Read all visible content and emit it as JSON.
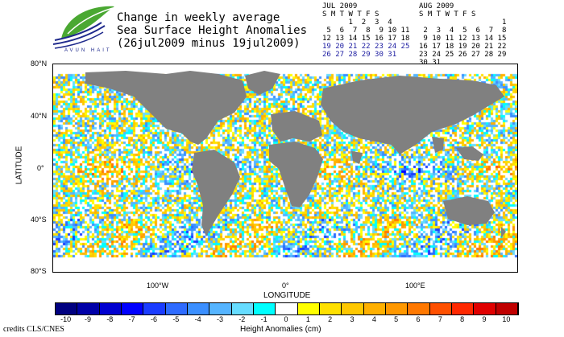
{
  "logo": {
    "text": "AVUN HAIT"
  },
  "title": {
    "line1": "Change in weekly average",
    "line2": "Sea Surface Height Anomalies",
    "line3": "(26jul2009 minus 19jul2009)"
  },
  "calendars": [
    {
      "month": "JUL 2009",
      "days_header": "S M T W T F S",
      "rows": [
        "      1  2  3  4",
        " 5  6  7  8  9 10 11",
        "12 13 14 15 16 17 18",
        "19 20 21 22 23 24 25",
        "26 27 28 29 30 31"
      ],
      "highlight_rows": [
        3,
        4
      ]
    },
    {
      "month": "AUG 2009",
      "days_header": "S M T W T F S",
      "rows": [
        "                   1",
        " 2  3  4  5  6  7  8",
        " 9 10 11 12 13 14 15",
        "16 17 18 19 20 21 22",
        "23 24 25 26 27 28 29",
        "30 31"
      ],
      "highlight_rows": []
    }
  ],
  "map": {
    "ylabel": "LATITUDE",
    "xlabel": "LONGITUDE",
    "lat_ticks": [
      "80°N",
      "40°N",
      "0°",
      "40°S",
      "80°S"
    ],
    "lon_ticks": [
      "100°W",
      "0°",
      "100°E"
    ],
    "land_color": "#808080",
    "ice_color": "#ffffff"
  },
  "colorbar": {
    "title": "Height Anomalies (cm)",
    "labels": [
      "-10",
      "-9",
      "-8",
      "-7",
      "-6",
      "-5",
      "-4",
      "-3",
      "-2",
      "-1",
      "0",
      "1",
      "2",
      "3",
      "4",
      "5",
      "6",
      "7",
      "8",
      "9",
      "10"
    ],
    "colors": [
      "#000080",
      "#0000a8",
      "#0000d0",
      "#0000ff",
      "#1a3cff",
      "#2e6bff",
      "#3b8fff",
      "#55b4ff",
      "#66dcff",
      "#00ffff",
      "#ffffff",
      "#ffff00",
      "#ffe000",
      "#ffc800",
      "#ffb000",
      "#ff9800",
      "#ff7800",
      "#ff5000",
      "#ff2800",
      "#e00000",
      "#c00000"
    ]
  },
  "credits": "credits CLS/CNES"
}
